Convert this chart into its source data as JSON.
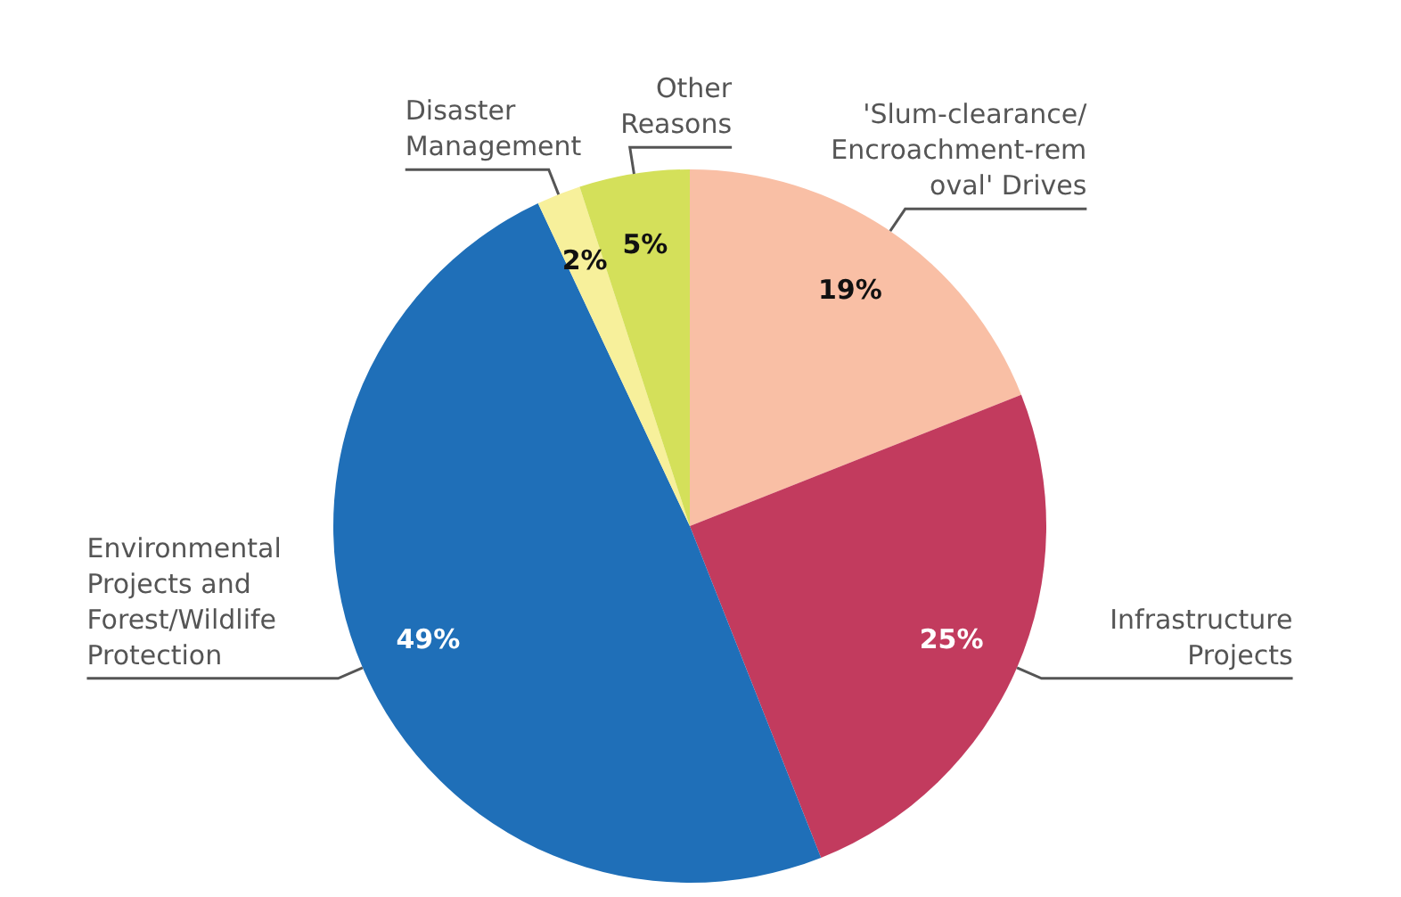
{
  "chart_data": {
    "type": "pie",
    "categories": [
      "'Slum-clearance/\nEncroachment-rem\noval' Drives",
      "Infrastructure\nProjects",
      "Environmental\nProjects and\nForest/Wildlife\nProtection",
      "Disaster\nManagement",
      "Other\nReasons"
    ],
    "values": [
      19,
      25,
      49,
      2,
      5
    ],
    "value_labels": [
      "19%",
      "25%",
      "49%",
      "2%",
      "5%"
    ],
    "colors": [
      "#f9bfa5",
      "#c23b5e",
      "#1f6fb8",
      "#f7f09b",
      "#d4e05a"
    ],
    "legend": false
  }
}
